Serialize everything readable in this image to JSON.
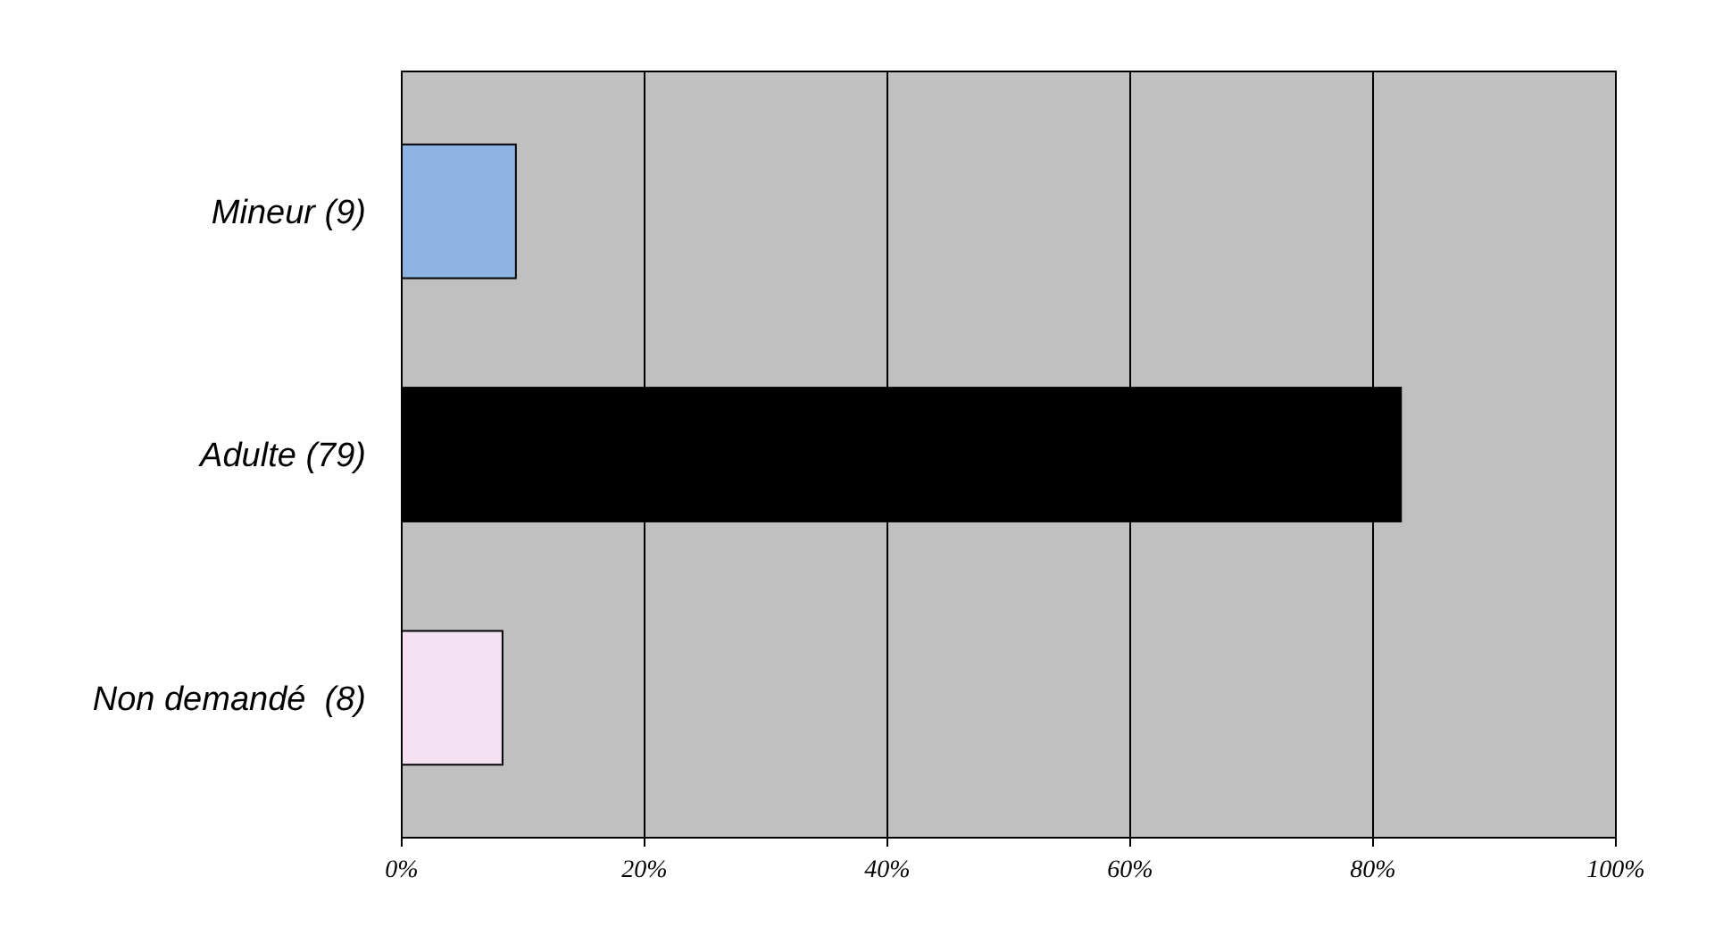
{
  "chart_data": {
    "type": "bar",
    "orientation": "horizontal",
    "categories": [
      "Mineur (9)",
      "Adulte (79)",
      "Non demandé  (8)"
    ],
    "values": [
      9.4,
      82.3,
      8.3
    ],
    "colors": [
      "#8db3e2",
      "#000000",
      "#f4e1f2"
    ],
    "xlim": [
      0,
      100
    ],
    "xticks": [
      {
        "value": 0,
        "label": "0%"
      },
      {
        "value": 20,
        "label": "20%"
      },
      {
        "value": 40,
        "label": "40%"
      },
      {
        "value": 60,
        "label": "60%"
      },
      {
        "value": 80,
        "label": "80%"
      },
      {
        "value": 100,
        "label": "100%"
      }
    ],
    "grid": "x"
  }
}
